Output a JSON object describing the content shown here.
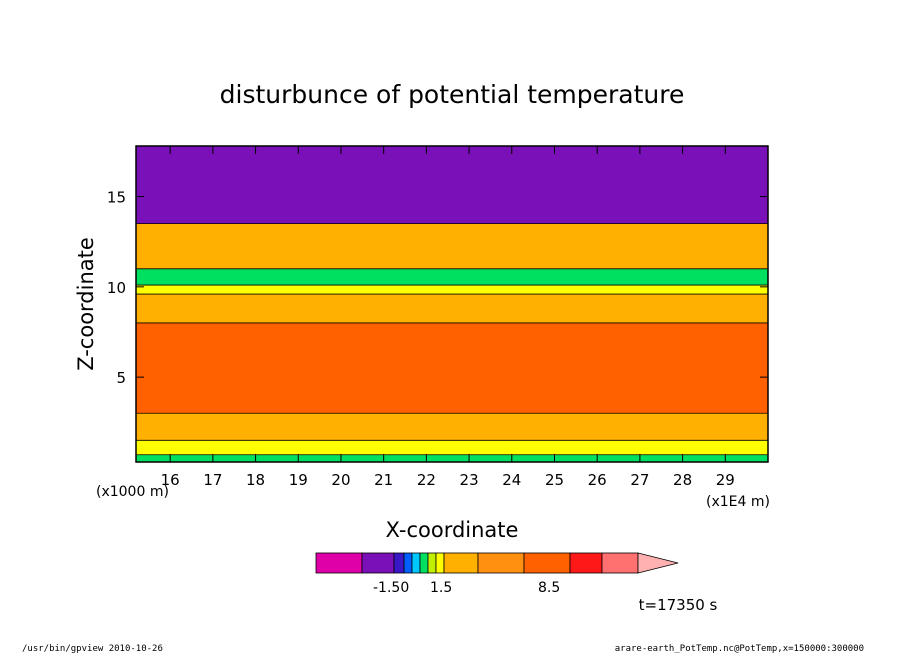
{
  "chart_data": {
    "type": "heatmap",
    "title": "disturbunce of potential temperature",
    "xlabel": "X-coordinate",
    "ylabel": "Z-coordinate",
    "x_unit": "(x1E4 m)",
    "y_unit": "(x1000 m)",
    "xlim": [
      15.2,
      30.0
    ],
    "ylim": [
      0.3,
      17.8
    ],
    "x_ticks": [
      "16",
      "17",
      "18",
      "19",
      "20",
      "21",
      "22",
      "23",
      "24",
      "25",
      "26",
      "27",
      "28",
      "29"
    ],
    "y_ticks": [
      "5",
      "10",
      "15"
    ],
    "time_label": "t=17350 s",
    "colorbar": {
      "colors": [
        "#e000a8",
        "#7a10b8",
        "#3a18c8",
        "#0060ff",
        "#00c8ff",
        "#00e060",
        "#c0f000",
        "#ffff00",
        "#ffb000",
        "#ff9010",
        "#ff6000",
        "#ff1818",
        "#ff7070",
        "#ffb0b0"
      ],
      "labels": [
        "-1.50",
        "1.5",
        "8.5"
      ]
    },
    "layers": [
      {
        "z_bottom": 0.3,
        "z_top": 0.7,
        "color": "#00e060"
      },
      {
        "z_bottom": 0.7,
        "z_top": 1.5,
        "color": "#ffff00"
      },
      {
        "z_bottom": 1.5,
        "z_top": 3.0,
        "color": "#ffb000"
      },
      {
        "z_bottom": 3.0,
        "z_top": 8.0,
        "color": "#ff6000"
      },
      {
        "z_bottom": 8.0,
        "z_top": 9.6,
        "color": "#ffb000"
      },
      {
        "z_bottom": 9.6,
        "z_top": 10.1,
        "color": "#ffff00"
      },
      {
        "z_bottom": 10.1,
        "z_top": 11.0,
        "color": "#00e060"
      },
      {
        "z_bottom": 11.0,
        "z_top": 13.5,
        "color": "#ffb000"
      },
      {
        "z_bottom": 13.5,
        "z_top": 17.8,
        "color": "#7a10b8"
      }
    ]
  },
  "footer": {
    "left": "/usr/bin/gpview   2010-10-26",
    "right": "arare-earth_PotTemp.nc@PotTemp,x=150000:300000"
  }
}
